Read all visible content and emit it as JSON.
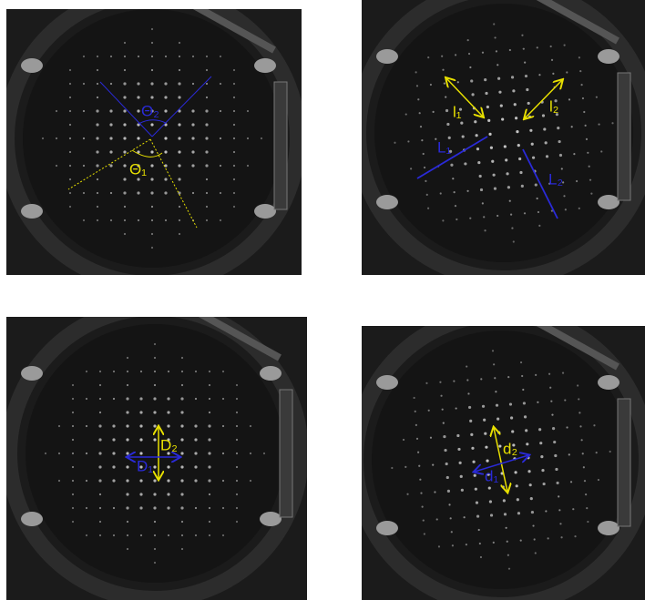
{
  "panels": [
    {
      "labels": [
        "Θ₂",
        "Θ₁"
      ]
    },
    {
      "labels": [
        "l₁",
        "l₂",
        "L₁",
        "L₂"
      ]
    },
    {
      "labels": [
        "D₂",
        "D₁"
      ]
    },
    {
      "labels": [
        "d₂",
        "d₁"
      ]
    }
  ]
}
